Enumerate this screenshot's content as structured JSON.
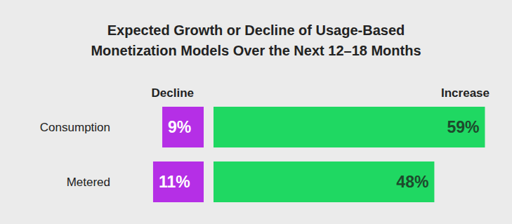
{
  "chart_data": {
    "type": "bar",
    "orientation": "horizontal",
    "title": "Expected Growth or Decline of Usage-Based Monetization Models Over the Next 12–18 Months",
    "categories": [
      "Consumption",
      "Metered"
    ],
    "series": [
      {
        "name": "Decline",
        "color": "#b52fe6",
        "values": [
          9,
          11
        ],
        "value_labels": [
          "9%",
          "11%"
        ]
      },
      {
        "name": "Increase",
        "color": "#1fd862",
        "values": [
          59,
          48
        ],
        "value_labels": [
          "59%",
          "48%"
        ]
      }
    ],
    "xlim": [
      0,
      60
    ],
    "data_labels": true,
    "tick_labels": false,
    "grid": false
  }
}
